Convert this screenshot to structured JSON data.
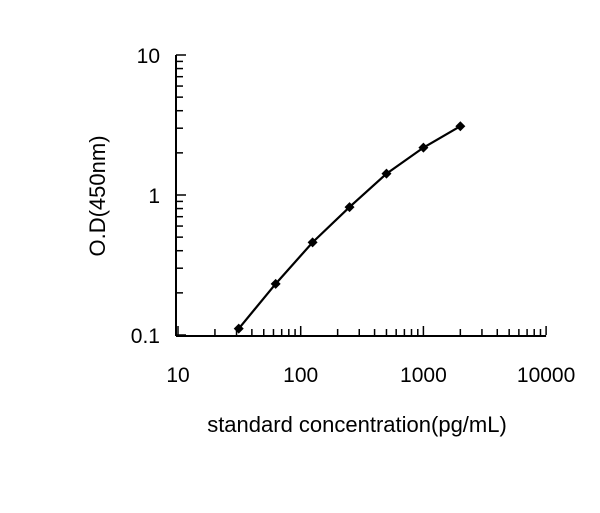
{
  "chart_data": {
    "type": "line",
    "title": "",
    "xlabel": "standard concentration(pg/mL)",
    "ylabel": "O.D(450nm)",
    "x_scale": "log",
    "y_scale": "log",
    "xlim": [
      10,
      10000
    ],
    "ylim": [
      0.1,
      10
    ],
    "x_ticks": [
      "10",
      "100",
      "1000",
      "10000"
    ],
    "y_ticks": [
      "0.1",
      "1",
      "10"
    ],
    "grid": false,
    "color": "#000000",
    "marker": "diamond",
    "series": [
      {
        "x": [
          31.25,
          62.5,
          125,
          250,
          500,
          1000,
          2000
        ],
        "y": [
          0.111,
          0.232,
          0.459,
          0.82,
          1.42,
          2.18,
          3.1
        ]
      }
    ]
  }
}
